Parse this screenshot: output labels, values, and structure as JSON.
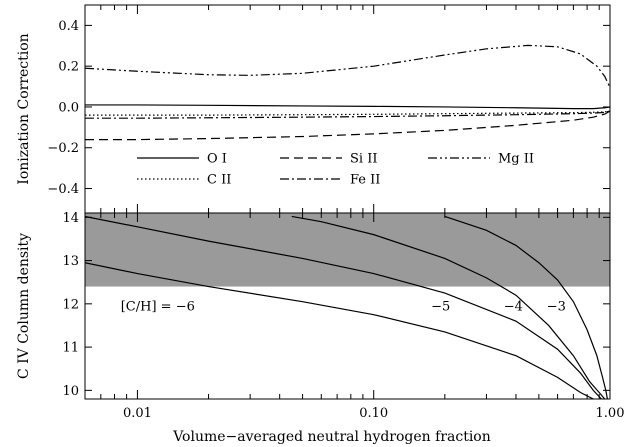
{
  "chart_data": [
    {
      "type": "line",
      "title": "",
      "xlabel": "",
      "ylabel": "Ionization Correction",
      "xscale": "log",
      "xlim": [
        0.006,
        1.0
      ],
      "ylim": [
        -0.52,
        0.5
      ],
      "yticks": [
        0.4,
        0.2,
        0.0,
        -0.2,
        -0.4
      ],
      "ytick_labels": [
        "0.4",
        "0.2",
        "0.0",
        "−0.2",
        "−0.4"
      ],
      "grid": false,
      "legend": {
        "placement": "lower-center",
        "entries": [
          {
            "label": "O I",
            "style": "solid"
          },
          {
            "label": "Si II",
            "style": "dashed"
          },
          {
            "label": "Mg II",
            "style": "dash-dot-dot"
          },
          {
            "label": "C II",
            "style": "dotted"
          },
          {
            "label": "Fe II",
            "style": "dash-dot"
          }
        ]
      },
      "series": [
        {
          "name": "O I",
          "style": "solid",
          "x": [
            0.006,
            0.01,
            0.02,
            0.05,
            0.1,
            0.2,
            0.4,
            0.7,
            0.85,
            0.95,
            1.0
          ],
          "y": [
            0.01,
            0.01,
            0.008,
            0.005,
            0.003,
            0.0,
            -0.004,
            -0.008,
            -0.008,
            -0.004,
            0.0
          ]
        },
        {
          "name": "Si II",
          "style": "dashed",
          "x": [
            0.006,
            0.01,
            0.02,
            0.05,
            0.1,
            0.2,
            0.4,
            0.7,
            0.85,
            0.95,
            1.0
          ],
          "y": [
            -0.16,
            -0.16,
            -0.155,
            -0.145,
            -0.132,
            -0.115,
            -0.09,
            -0.065,
            -0.05,
            -0.035,
            -0.02
          ]
        },
        {
          "name": "Mg II",
          "style": "dash-dot-dot",
          "x": [
            0.006,
            0.01,
            0.02,
            0.03,
            0.05,
            0.1,
            0.2,
            0.3,
            0.45,
            0.6,
            0.75,
            0.88,
            0.95,
            1.0
          ],
          "y": [
            0.19,
            0.175,
            0.158,
            0.155,
            0.165,
            0.2,
            0.255,
            0.285,
            0.302,
            0.295,
            0.26,
            0.2,
            0.15,
            0.095
          ]
        },
        {
          "name": "C II",
          "style": "dotted",
          "x": [
            0.006,
            0.01,
            0.02,
            0.05,
            0.1,
            0.2,
            0.4,
            0.7,
            0.85,
            0.95,
            1.0
          ],
          "y": [
            -0.04,
            -0.04,
            -0.04,
            -0.038,
            -0.036,
            -0.033,
            -0.03,
            -0.028,
            -0.026,
            -0.024,
            -0.02
          ]
        },
        {
          "name": "Fe II",
          "style": "dash-dot",
          "x": [
            0.006,
            0.01,
            0.02,
            0.05,
            0.1,
            0.2,
            0.4,
            0.7,
            0.85,
            0.95,
            1.0
          ],
          "y": [
            -0.055,
            -0.055,
            -0.053,
            -0.05,
            -0.047,
            -0.043,
            -0.038,
            -0.033,
            -0.03,
            -0.027,
            -0.02
          ]
        }
      ]
    },
    {
      "type": "line",
      "title": "",
      "xlabel": "Volume−averaged neutral hydrogen fraction",
      "ylabel": "C IV Column density",
      "xscale": "log",
      "xlim": [
        0.006,
        1.0
      ],
      "ylim": [
        9.8,
        14.1
      ],
      "xticks": [
        0.01,
        0.1,
        1.0
      ],
      "xtick_labels": [
        "0.01",
        "0.10",
        "1.00"
      ],
      "yticks": [
        14,
        13,
        12,
        11,
        10
      ],
      "ytick_labels": [
        "14",
        "13",
        "12",
        "11",
        "10"
      ],
      "grid": false,
      "shaded_band": {
        "y0": 12.4,
        "y1": 14.1,
        "color": "#9a9a9a"
      },
      "annotations": [
        {
          "text": "[C/H] = −6",
          "x": 0.0085,
          "y": 11.85
        },
        {
          "text": "−5",
          "x": 0.175,
          "y": 11.85
        },
        {
          "text": "−4",
          "x": 0.355,
          "y": 11.85
        },
        {
          "text": "−3",
          "x": 0.54,
          "y": 11.85
        }
      ],
      "series": [
        {
          "name": "[C/H] = −6",
          "x": [
            0.006,
            0.01,
            0.02,
            0.05,
            0.1,
            0.2,
            0.4,
            0.6,
            0.75,
            0.85
          ],
          "y": [
            12.95,
            12.7,
            12.4,
            12.05,
            11.75,
            11.35,
            10.8,
            10.3,
            9.95,
            9.8
          ]
        },
        {
          "name": "−5",
          "x": [
            0.006,
            0.01,
            0.02,
            0.05,
            0.1,
            0.2,
            0.4,
            0.6,
            0.75,
            0.85,
            0.92
          ],
          "y": [
            14.02,
            13.78,
            13.45,
            13.05,
            12.7,
            12.25,
            11.6,
            10.95,
            10.4,
            10.0,
            9.8
          ]
        },
        {
          "name": "−4",
          "x": [
            0.045,
            0.06,
            0.1,
            0.2,
            0.3,
            0.4,
            0.55,
            0.7,
            0.82,
            0.9,
            0.95
          ],
          "y": [
            14.02,
            13.9,
            13.6,
            13.05,
            12.6,
            12.2,
            11.5,
            10.8,
            10.2,
            9.95,
            9.8
          ]
        },
        {
          "name": "−3",
          "x": [
            0.2,
            0.3,
            0.4,
            0.5,
            0.6,
            0.7,
            0.8,
            0.88,
            0.93,
            0.96,
            0.975
          ],
          "y": [
            14.02,
            13.7,
            13.35,
            12.95,
            12.55,
            12.05,
            11.4,
            10.8,
            10.3,
            10.0,
            9.8
          ]
        }
      ]
    }
  ]
}
